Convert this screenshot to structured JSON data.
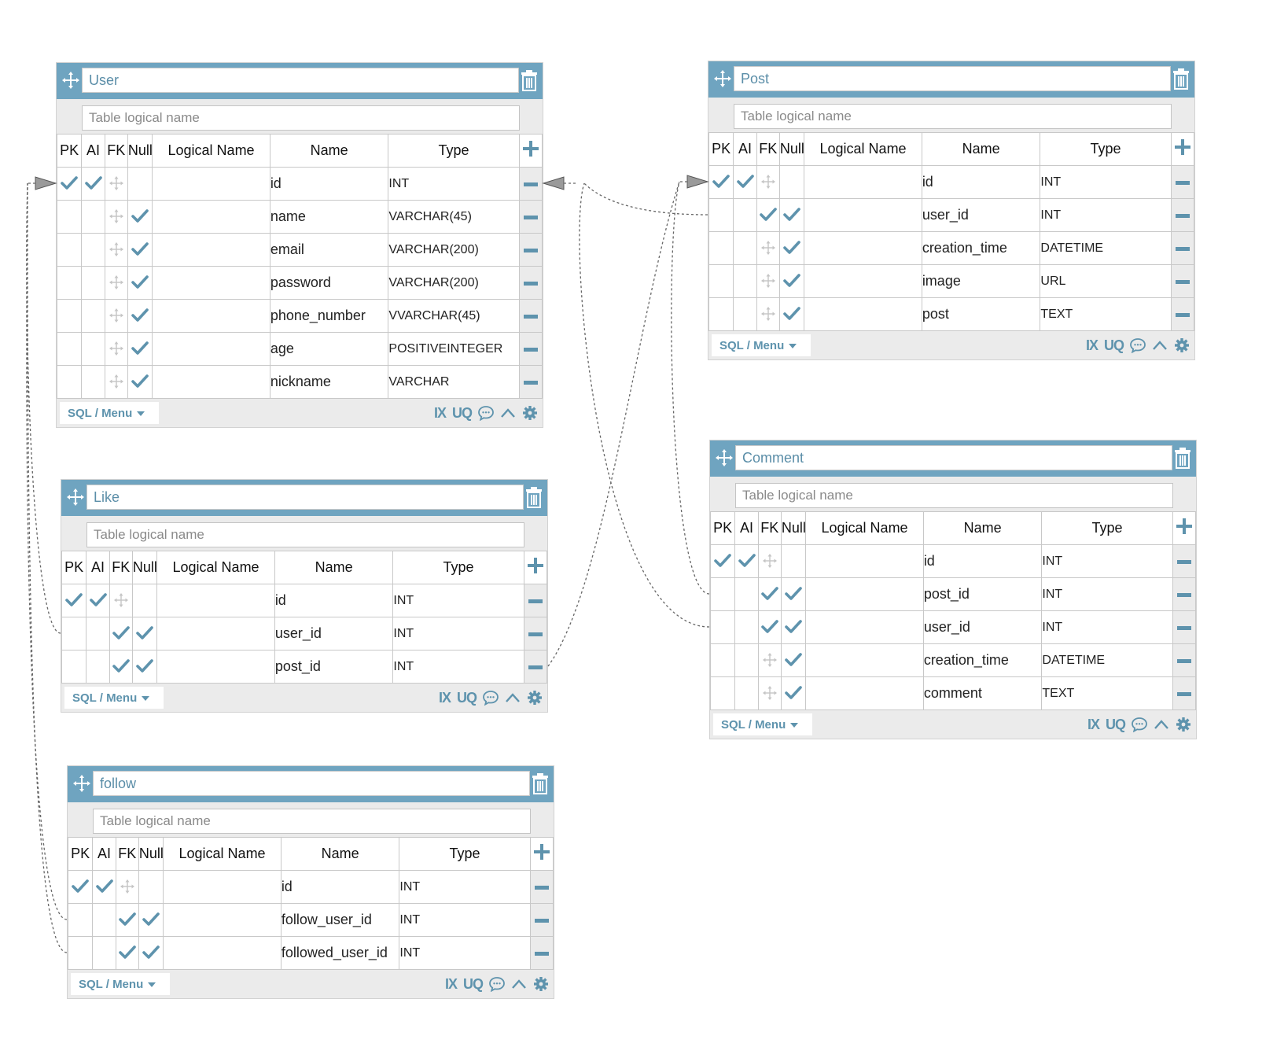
{
  "ui": {
    "headers": {
      "pk": "PK",
      "ai": "AI",
      "fk": "FK",
      "null": "Null",
      "logical": "Logical Name",
      "name": "Name",
      "type": "Type"
    },
    "logical_placeholder": "Table logical name",
    "menu_label": "SQL / Menu",
    "ix_label": "IX",
    "uq_label": "UQ",
    "accent_color": "#6fa4c0",
    "check_color": "#5e93ad"
  },
  "tables": [
    {
      "key": "user",
      "title": "User",
      "columns": [
        {
          "pk": true,
          "ai": true,
          "fk": false,
          "nullable": false,
          "name": "id",
          "type": "INT"
        },
        {
          "pk": false,
          "ai": false,
          "fk": false,
          "nullable": true,
          "name": "name",
          "type": "VARCHAR(45)"
        },
        {
          "pk": false,
          "ai": false,
          "fk": false,
          "nullable": true,
          "name": "email",
          "type": "VARCHAR(200)"
        },
        {
          "pk": false,
          "ai": false,
          "fk": false,
          "nullable": true,
          "name": "password",
          "type": "VARCHAR(200)"
        },
        {
          "pk": false,
          "ai": false,
          "fk": false,
          "nullable": true,
          "name": "phone_number",
          "type": "VVARCHAR(45)"
        },
        {
          "pk": false,
          "ai": false,
          "fk": false,
          "nullable": true,
          "name": "age",
          "type": "POSITIVEINTEGER"
        },
        {
          "pk": false,
          "ai": false,
          "fk": false,
          "nullable": true,
          "name": "nickname",
          "type": "VARCHAR"
        }
      ]
    },
    {
      "key": "post",
      "title": "Post",
      "columns": [
        {
          "pk": true,
          "ai": true,
          "fk": false,
          "nullable": false,
          "name": "id",
          "type": "INT"
        },
        {
          "pk": false,
          "ai": false,
          "fk": true,
          "nullable": true,
          "name": "user_id",
          "type": "INT"
        },
        {
          "pk": false,
          "ai": false,
          "fk": false,
          "nullable": true,
          "name": "creation_time",
          "type": "DATETIME"
        },
        {
          "pk": false,
          "ai": false,
          "fk": false,
          "nullable": true,
          "name": "image",
          "type": "URL"
        },
        {
          "pk": false,
          "ai": false,
          "fk": false,
          "nullable": true,
          "name": "post",
          "type": "TEXT"
        }
      ]
    },
    {
      "key": "comment",
      "title": "Comment",
      "columns": [
        {
          "pk": true,
          "ai": true,
          "fk": false,
          "nullable": false,
          "name": "id",
          "type": "INT"
        },
        {
          "pk": false,
          "ai": false,
          "fk": true,
          "nullable": true,
          "name": "post_id",
          "type": "INT"
        },
        {
          "pk": false,
          "ai": false,
          "fk": true,
          "nullable": true,
          "name": "user_id",
          "type": "INT"
        },
        {
          "pk": false,
          "ai": false,
          "fk": false,
          "nullable": true,
          "name": "creation_time",
          "type": "DATETIME"
        },
        {
          "pk": false,
          "ai": false,
          "fk": false,
          "nullable": true,
          "name": "comment",
          "type": "TEXT"
        }
      ]
    },
    {
      "key": "like",
      "title": "Like",
      "columns": [
        {
          "pk": true,
          "ai": true,
          "fk": false,
          "nullable": false,
          "name": "id",
          "type": "INT"
        },
        {
          "pk": false,
          "ai": false,
          "fk": true,
          "nullable": true,
          "name": "user_id",
          "type": "INT"
        },
        {
          "pk": false,
          "ai": false,
          "fk": true,
          "nullable": true,
          "name": "post_id",
          "type": "INT"
        }
      ]
    },
    {
      "key": "follow",
      "title": "follow",
      "columns": [
        {
          "pk": true,
          "ai": true,
          "fk": false,
          "nullable": false,
          "name": "id",
          "type": "INT"
        },
        {
          "pk": false,
          "ai": false,
          "fk": true,
          "nullable": true,
          "name": "follow_user_id",
          "type": "INT"
        },
        {
          "pk": false,
          "ai": false,
          "fk": true,
          "nullable": true,
          "name": "followed_user_id",
          "type": "INT"
        }
      ]
    }
  ],
  "relations": [
    {
      "from_table": "post",
      "from_column": "user_id",
      "to_table": "user",
      "to_column": "id"
    },
    {
      "from_table": "comment",
      "from_column": "post_id",
      "to_table": "post",
      "to_column": "id"
    },
    {
      "from_table": "comment",
      "from_column": "user_id",
      "to_table": "user",
      "to_column": "id"
    },
    {
      "from_table": "like",
      "from_column": "user_id",
      "to_table": "user",
      "to_column": "id"
    },
    {
      "from_table": "like",
      "from_column": "post_id",
      "to_table": "post",
      "to_column": "id"
    },
    {
      "from_table": "follow",
      "from_column": "follow_user_id",
      "to_table": "user",
      "to_column": "id"
    },
    {
      "from_table": "follow",
      "from_column": "followed_user_id",
      "to_table": "user",
      "to_column": "id"
    }
  ]
}
